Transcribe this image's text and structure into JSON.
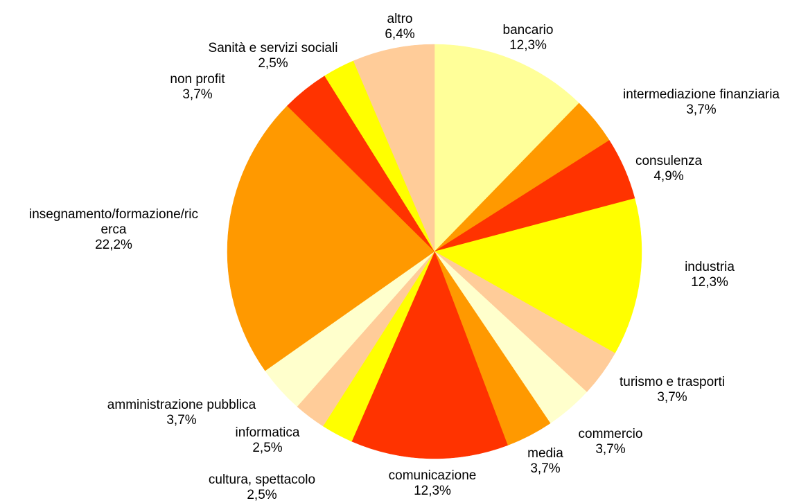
{
  "chart_data": {
    "type": "pie",
    "title": "",
    "start_angle_deg": 0,
    "direction": "clockwise",
    "slices": [
      {
        "label": "bancario",
        "value": 12.3,
        "pct_text": "12,3%",
        "color": "#FFFF99"
      },
      {
        "label": "intermediazione finanziaria",
        "value": 3.7,
        "pct_text": "3,7%",
        "color": "#FF9900"
      },
      {
        "label": "consulenza",
        "value": 4.9,
        "pct_text": "4,9%",
        "color": "#FF3300"
      },
      {
        "label": "industria",
        "value": 12.3,
        "pct_text": "12,3%",
        "color": "#FFFF00"
      },
      {
        "label": "turismo e trasporti",
        "value": 3.7,
        "pct_text": "3,7%",
        "color": "#FFCC99"
      },
      {
        "label": "commercio",
        "value": 3.7,
        "pct_text": "3,7%",
        "color": "#FFFFCC"
      },
      {
        "label": "media",
        "value": 3.7,
        "pct_text": "3,7%",
        "color": "#FF9900"
      },
      {
        "label": "comunicazione",
        "value": 12.3,
        "pct_text": "12,3%",
        "color": "#FF3300"
      },
      {
        "label": "cultura, spettacolo",
        "value": 2.5,
        "pct_text": "2,5%",
        "color": "#FFFF00"
      },
      {
        "label": "informatica",
        "value": 2.5,
        "pct_text": "2,5%",
        "color": "#FFCC99"
      },
      {
        "label": "amministrazione pubblica",
        "value": 3.7,
        "pct_text": "3,7%",
        "color": "#FFFFCC"
      },
      {
        "label": "insegnamento/formazione/ric erca",
        "label_lines": [
          "insegnamento/formazione/ric",
          "erca"
        ],
        "value": 22.2,
        "pct_text": "22,2%",
        "color": "#FF9900"
      },
      {
        "label": "non profit",
        "value": 3.7,
        "pct_text": "3,7%",
        "color": "#FF3300"
      },
      {
        "label": "Sanità e servizi sociali",
        "value": 2.5,
        "pct_text": "2,5%",
        "color": "#FFFF00"
      },
      {
        "label": "altro",
        "value": 6.4,
        "pct_text": "6,4%",
        "color": "#FFCC99"
      }
    ]
  }
}
